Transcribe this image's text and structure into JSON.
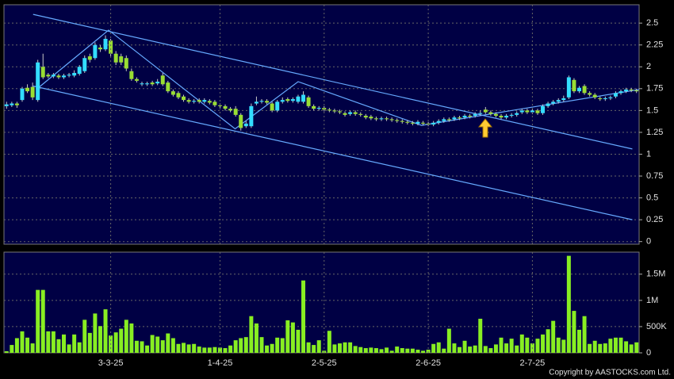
{
  "chart_data": [
    {
      "type": "candlestick",
      "up_color": "#33ddff",
      "down_color": "#99dd33",
      "grid": true,
      "ylim": [
        -0.03,
        2.71
      ],
      "yticks": [
        0,
        0.25,
        0.5,
        0.75,
        1,
        1.25,
        1.5,
        1.75,
        2,
        2.25,
        2.5
      ],
      "open": [
        1.55,
        1.56,
        1.58,
        1.62,
        1.76,
        1.77,
        1.62,
        2.0,
        1.91,
        1.89,
        1.9,
        1.88,
        1.9,
        1.9,
        1.92,
        1.95,
        2.12,
        2.1,
        2.22,
        2.2,
        2.3,
        2.15,
        2.12,
        2.1,
        1.95,
        1.86,
        1.8,
        1.8,
        1.82,
        1.81,
        1.9,
        1.82,
        1.72,
        1.7,
        1.66,
        1.62,
        1.6,
        1.62,
        1.6,
        1.61,
        1.6,
        1.56,
        1.55,
        1.52,
        1.52,
        1.45,
        1.32,
        1.32,
        1.58,
        1.6,
        1.61,
        1.58,
        1.5,
        1.6,
        1.63,
        1.61,
        1.6,
        1.6,
        1.65,
        1.55,
        1.52,
        1.53,
        1.51,
        1.5,
        1.49,
        1.47,
        1.46,
        1.48,
        1.46,
        1.44,
        1.43,
        1.41,
        1.4,
        1.41,
        1.4,
        1.39,
        1.38,
        1.37,
        1.36,
        1.35,
        1.36,
        1.35,
        1.34,
        1.36,
        1.38,
        1.4,
        1.4,
        1.42,
        1.42,
        1.44,
        1.44,
        1.46,
        1.51,
        1.48,
        1.46,
        1.44,
        1.42,
        1.44,
        1.45,
        1.48,
        1.5,
        1.48,
        1.5,
        1.47,
        1.55,
        1.58,
        1.6,
        1.62,
        1.65,
        1.85,
        1.72,
        1.78,
        1.7,
        1.68,
        1.64,
        1.63,
        1.64,
        1.66,
        1.7,
        1.72,
        1.74,
        1.73
      ],
      "high": [
        1.6,
        1.6,
        1.6,
        1.77,
        1.8,
        1.82,
        2.08,
        2.15,
        1.93,
        1.93,
        1.92,
        1.92,
        1.93,
        1.96,
        2.02,
        2.13,
        2.15,
        2.28,
        2.25,
        2.36,
        2.32,
        2.18,
        2.15,
        2.13,
        1.98,
        1.88,
        1.83,
        1.83,
        1.84,
        1.86,
        1.93,
        1.84,
        1.74,
        1.72,
        1.68,
        1.64,
        1.63,
        1.64,
        1.64,
        1.63,
        1.62,
        1.58,
        1.57,
        1.54,
        1.55,
        1.47,
        1.38,
        1.58,
        1.66,
        1.63,
        1.63,
        1.6,
        1.62,
        1.65,
        1.65,
        1.65,
        1.68,
        1.72,
        1.67,
        1.57,
        1.55,
        1.55,
        1.53,
        1.52,
        1.51,
        1.49,
        1.5,
        1.5,
        1.48,
        1.46,
        1.45,
        1.43,
        1.43,
        1.43,
        1.42,
        1.41,
        1.4,
        1.39,
        1.38,
        1.39,
        1.38,
        1.37,
        1.38,
        1.4,
        1.42,
        1.42,
        1.44,
        1.44,
        1.46,
        1.46,
        1.48,
        1.5,
        1.54,
        1.5,
        1.48,
        1.46,
        1.46,
        1.47,
        1.49,
        1.52,
        1.52,
        1.52,
        1.52,
        1.57,
        1.6,
        1.62,
        1.64,
        1.67,
        1.9,
        1.87,
        1.78,
        1.8,
        1.72,
        1.7,
        1.66,
        1.66,
        1.67,
        1.72,
        1.74,
        1.76,
        1.76,
        1.75
      ],
      "low": [
        1.52,
        1.54,
        1.53,
        1.6,
        1.7,
        1.62,
        1.6,
        1.86,
        1.87,
        1.87,
        1.86,
        1.86,
        1.88,
        1.88,
        1.9,
        1.93,
        2.05,
        2.08,
        2.17,
        2.18,
        2.12,
        2.02,
        2.02,
        1.95,
        1.84,
        1.82,
        1.78,
        1.78,
        1.78,
        1.79,
        1.78,
        1.7,
        1.66,
        1.63,
        1.6,
        1.58,
        1.58,
        1.58,
        1.58,
        1.57,
        1.54,
        1.53,
        1.5,
        1.48,
        1.43,
        1.27,
        1.3,
        1.3,
        1.56,
        1.58,
        1.57,
        1.48,
        1.48,
        1.58,
        1.59,
        1.59,
        1.58,
        1.58,
        1.53,
        1.5,
        1.5,
        1.49,
        1.48,
        1.47,
        1.46,
        1.43,
        1.44,
        1.44,
        1.43,
        1.4,
        1.39,
        1.38,
        1.38,
        1.38,
        1.37,
        1.36,
        1.35,
        1.34,
        1.33,
        1.33,
        1.33,
        1.32,
        1.32,
        1.34,
        1.36,
        1.37,
        1.38,
        1.39,
        1.4,
        1.41,
        1.42,
        1.44,
        1.46,
        1.44,
        1.42,
        1.4,
        1.4,
        1.42,
        1.43,
        1.46,
        1.46,
        1.46,
        1.45,
        1.45,
        1.53,
        1.56,
        1.58,
        1.6,
        1.63,
        1.7,
        1.7,
        1.68,
        1.66,
        1.63,
        1.61,
        1.61,
        1.62,
        1.64,
        1.68,
        1.7,
        1.71,
        1.7
      ],
      "close": [
        1.57,
        1.58,
        1.56,
        1.75,
        1.72,
        1.65,
        2.05,
        1.88,
        1.89,
        1.91,
        1.88,
        1.9,
        1.91,
        1.93,
        2.0,
        2.1,
        2.08,
        2.25,
        2.2,
        2.32,
        2.15,
        2.05,
        2.05,
        1.98,
        1.86,
        1.84,
        1.81,
        1.81,
        1.8,
        1.83,
        1.8,
        1.72,
        1.68,
        1.65,
        1.62,
        1.6,
        1.61,
        1.6,
        1.62,
        1.59,
        1.56,
        1.55,
        1.52,
        1.5,
        1.45,
        1.3,
        1.35,
        1.55,
        1.6,
        1.61,
        1.59,
        1.5,
        1.6,
        1.62,
        1.61,
        1.63,
        1.66,
        1.68,
        1.55,
        1.52,
        1.53,
        1.51,
        1.5,
        1.49,
        1.48,
        1.45,
        1.48,
        1.46,
        1.45,
        1.42,
        1.41,
        1.4,
        1.41,
        1.4,
        1.39,
        1.38,
        1.37,
        1.36,
        1.35,
        1.37,
        1.35,
        1.34,
        1.36,
        1.38,
        1.4,
        1.39,
        1.42,
        1.41,
        1.44,
        1.43,
        1.46,
        1.47,
        1.48,
        1.46,
        1.44,
        1.42,
        1.44,
        1.45,
        1.47,
        1.5,
        1.48,
        1.5,
        1.47,
        1.55,
        1.58,
        1.6,
        1.62,
        1.64,
        1.88,
        1.72,
        1.76,
        1.7,
        1.68,
        1.65,
        1.63,
        1.64,
        1.65,
        1.7,
        1.72,
        1.74,
        1.73,
        1.72
      ],
      "trendlines": [
        {
          "color": "#66aaff",
          "points": [
            [
              5.1,
              2.6
            ],
            [
              120.2,
              1.06
            ]
          ]
        },
        {
          "color": "#66aaff",
          "points": [
            [
              5.1,
              1.78
            ],
            [
              120.2,
              0.25
            ]
          ]
        },
        {
          "color": "#66aaff",
          "points": [
            [
              6.3,
              1.77
            ],
            [
              19.6,
              2.42
            ],
            [
              43.9,
              1.29
            ],
            [
              56,
              1.83
            ],
            [
              79.7,
              1.33
            ],
            [
              121.5,
              1.74
            ]
          ]
        }
      ]
    },
    {
      "type": "bar",
      "color": "#88ee22",
      "grid": true,
      "ylim": [
        0,
        1920000
      ],
      "yticks": [
        0,
        {
          "value": 500000,
          "label": "500K"
        },
        {
          "value": 1000000,
          "label": "1M"
        },
        {
          "value": 1500000,
          "label": "1.5M"
        }
      ],
      "categories": [
        null,
        null,
        null,
        null,
        null,
        null,
        null,
        null,
        null,
        null,
        null,
        null,
        null,
        null,
        null,
        null,
        null,
        null,
        null,
        null,
        "3-3-25",
        null,
        null,
        null,
        null,
        null,
        null,
        null,
        null,
        null,
        null,
        null,
        null,
        null,
        null,
        null,
        null,
        null,
        null,
        null,
        null,
        "1-4-25",
        null,
        null,
        null,
        null,
        null,
        null,
        null,
        null,
        null,
        null,
        null,
        null,
        null,
        null,
        null,
        null,
        null,
        null,
        null,
        "2-5-25",
        null,
        null,
        null,
        null,
        null,
        null,
        null,
        null,
        null,
        null,
        null,
        null,
        null,
        null,
        null,
        null,
        null,
        null,
        null,
        "2-6-25",
        null,
        null,
        null,
        null,
        null,
        null,
        null,
        null,
        null,
        null,
        null,
        null,
        null,
        null,
        null,
        null,
        null,
        null,
        null,
        "2-7-25",
        null,
        null,
        null,
        null,
        null,
        null,
        null,
        null,
        null,
        null,
        null,
        null,
        null,
        null,
        null,
        null,
        null,
        null,
        null,
        null
      ],
      "values": [
        30000,
        150000,
        280000,
        410000,
        290000,
        180000,
        1200000,
        1200000,
        410000,
        410000,
        260000,
        350000,
        160000,
        350000,
        200000,
        630000,
        380000,
        750000,
        510000,
        830000,
        330000,
        390000,
        460000,
        630000,
        560000,
        230000,
        220000,
        140000,
        340000,
        310000,
        240000,
        370000,
        280000,
        170000,
        190000,
        160000,
        170000,
        120000,
        100000,
        100000,
        110000,
        100000,
        90000,
        140000,
        240000,
        280000,
        300000,
        700000,
        560000,
        300000,
        140000,
        170000,
        290000,
        280000,
        620000,
        580000,
        440000,
        1380000,
        200000,
        150000,
        240000,
        40000,
        420000,
        160000,
        180000,
        200000,
        200000,
        130000,
        110000,
        90000,
        100000,
        90000,
        70000,
        100000,
        40000,
        120000,
        90000,
        80000,
        80000,
        60000,
        40000,
        60000,
        170000,
        200000,
        80000,
        460000,
        180000,
        110000,
        230000,
        120000,
        140000,
        650000,
        130000,
        90000,
        160000,
        290000,
        180000,
        270000,
        140000,
        350000,
        290000,
        180000,
        270000,
        350000,
        450000,
        610000,
        290000,
        250000,
        1850000,
        800000,
        440000,
        700000,
        170000,
        230000,
        170000,
        180000,
        270000,
        290000,
        290000,
        220000,
        160000,
        200000
      ]
    }
  ],
  "copyright": "Copyright by AASTOCKS.com Ltd."
}
